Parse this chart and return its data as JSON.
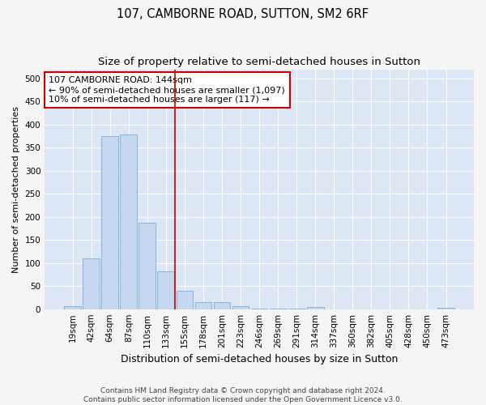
{
  "title1": "107, CAMBORNE ROAD, SUTTON, SM2 6RF",
  "title2": "Size of property relative to semi-detached houses in Sutton",
  "xlabel": "Distribution of semi-detached houses by size in Sutton",
  "ylabel": "Number of semi-detached properties",
  "bar_labels": [
    "19sqm",
    "42sqm",
    "64sqm",
    "87sqm",
    "110sqm",
    "133sqm",
    "155sqm",
    "178sqm",
    "201sqm",
    "223sqm",
    "246sqm",
    "269sqm",
    "291sqm",
    "314sqm",
    "337sqm",
    "360sqm",
    "382sqm",
    "405sqm",
    "428sqm",
    "450sqm",
    "473sqm"
  ],
  "bar_values": [
    7,
    110,
    375,
    378,
    188,
    82,
    40,
    15,
    16,
    7,
    2,
    1,
    1,
    5,
    0,
    0,
    0,
    0,
    0,
    0,
    3
  ],
  "bar_color": "#c5d8f0",
  "bar_edge_color": "#7aaed6",
  "vline_x": 5.5,
  "vline_color": "#cc0000",
  "annotation_text": "107 CAMBORNE ROAD: 144sqm\n← 90% of semi-detached houses are smaller (1,097)\n10% of semi-detached houses are larger (117) →",
  "annotation_box_color": "white",
  "annotation_box_edge": "#cc0000",
  "ylim": [
    0,
    520
  ],
  "yticks": [
    0,
    50,
    100,
    150,
    200,
    250,
    300,
    350,
    400,
    450,
    500
  ],
  "background_color": "#f5f5f5",
  "plot_bg_color": "#dce6f5",
  "footer_text": "Contains HM Land Registry data © Crown copyright and database right 2024.\nContains public sector information licensed under the Open Government Licence v3.0.",
  "title1_fontsize": 10.5,
  "title2_fontsize": 9.5,
  "xlabel_fontsize": 9,
  "ylabel_fontsize": 8,
  "tick_fontsize": 7.5,
  "footer_fontsize": 6.5,
  "annotation_fontsize": 8
}
